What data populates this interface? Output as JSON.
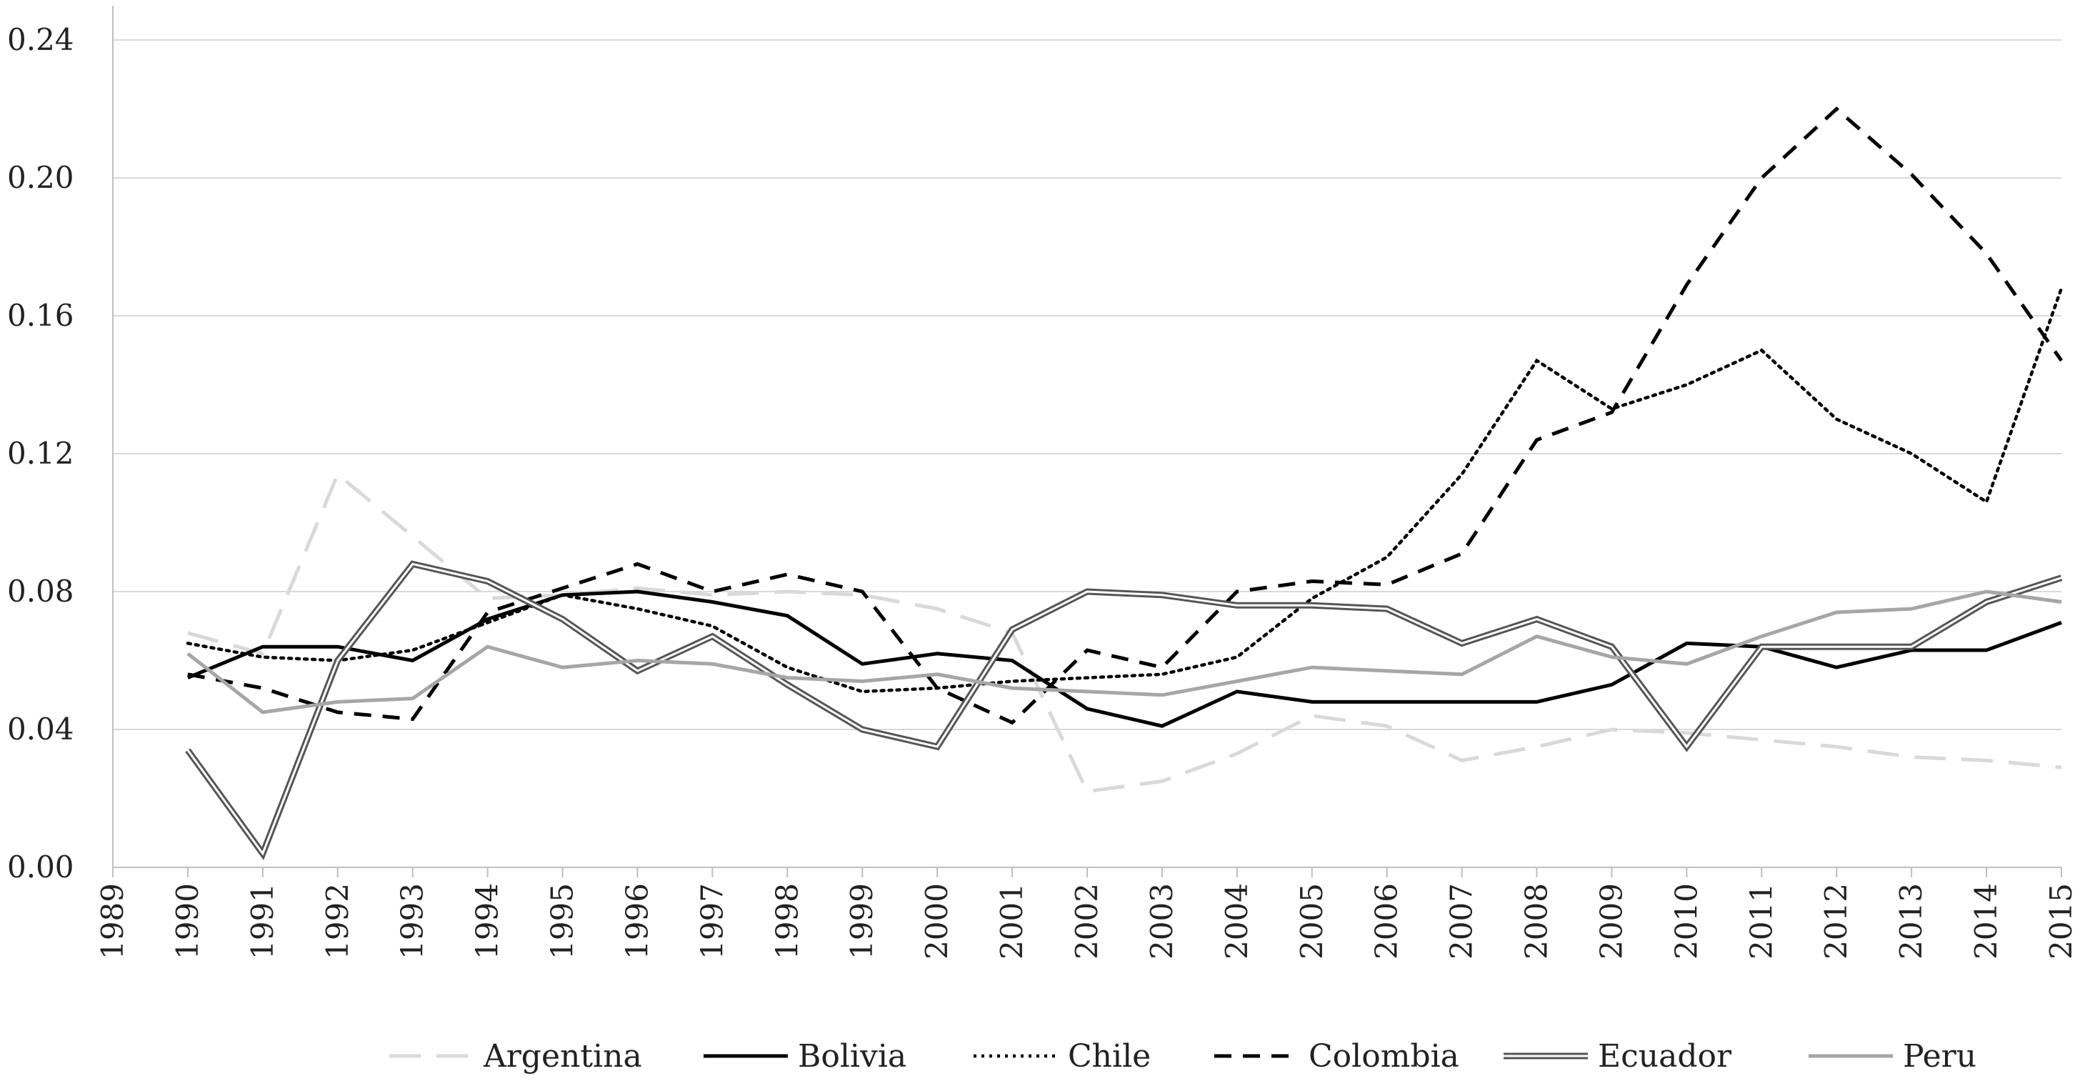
{
  "chart_data": {
    "type": "line",
    "title": "",
    "xlabel": "",
    "ylabel": "",
    "x": [
      1989,
      1990,
      1991,
      1992,
      1993,
      1994,
      1995,
      1996,
      1997,
      1998,
      1999,
      2000,
      2001,
      2002,
      2003,
      2004,
      2005,
      2006,
      2007,
      2008,
      2009,
      2010,
      2011,
      2012,
      2013,
      2014,
      2015
    ],
    "x_tick_labels": [
      "1989",
      "1990",
      "1991",
      "1992",
      "1993",
      "1994",
      "1995",
      "1996",
      "1997",
      "1998",
      "1999",
      "2000",
      "2001",
      "2002",
      "2003",
      "2004",
      "2005",
      "2006",
      "2007",
      "2008",
      "2009",
      "2010",
      "2011",
      "2012",
      "2013",
      "2014",
      "2015"
    ],
    "ylim": [
      0,
      0.24
    ],
    "y_ticks": [
      0,
      0.04,
      0.08,
      0.12,
      0.16,
      0.2,
      0.24
    ],
    "y_tick_labels": [
      "0.00",
      "0.04",
      "0.08",
      "0.12",
      "0.16",
      "0.20",
      "0.24"
    ],
    "grid": "horizontal",
    "legend_position": "bottom",
    "series": [
      {
        "name": "Argentina",
        "style": "longdash",
        "color": "#d9d9d9",
        "x": [
          1990,
          1991,
          1992,
          1993,
          1994,
          1995,
          1996,
          1997,
          1998,
          1999,
          2000,
          2001,
          2002,
          2003,
          2004,
          2005,
          2006,
          2007,
          2008,
          2009,
          2010,
          2011,
          2012,
          2013,
          2014,
          2015
        ],
        "values": [
          0.068,
          0.062,
          0.114,
          0.096,
          0.078,
          0.079,
          0.081,
          0.079,
          0.08,
          0.079,
          0.075,
          0.068,
          0.022,
          0.025,
          0.033,
          0.044,
          0.041,
          0.031,
          0.035,
          0.04,
          0.039,
          0.037,
          0.035,
          0.032,
          0.031,
          0.029
        ]
      },
      {
        "name": "Bolivia",
        "style": "solid",
        "color": "#000000",
        "x": [
          1990,
          1991,
          1992,
          1993,
          1994,
          1995,
          1996,
          1997,
          1998,
          1999,
          2000,
          2001,
          2002,
          2003,
          2004,
          2005,
          2006,
          2007,
          2008,
          2009,
          2010,
          2011,
          2012,
          2013,
          2014,
          2015
        ],
        "values": [
          0.055,
          0.064,
          0.064,
          0.06,
          0.072,
          0.079,
          0.08,
          0.077,
          0.073,
          0.059,
          0.062,
          0.06,
          0.046,
          0.041,
          0.051,
          0.048,
          0.048,
          0.048,
          0.048,
          0.053,
          0.065,
          0.064,
          0.058,
          0.063,
          0.063,
          0.071
        ]
      },
      {
        "name": "Chile",
        "style": "dotted",
        "color": "#000000",
        "x": [
          1990,
          1991,
          1992,
          1993,
          1994,
          1995,
          1996,
          1997,
          1998,
          1999,
          2000,
          2001,
          2002,
          2003,
          2004,
          2005,
          2006,
          2007,
          2008,
          2009,
          2010,
          2011,
          2012,
          2013,
          2014,
          2015
        ],
        "values": [
          0.065,
          0.061,
          0.06,
          0.063,
          0.071,
          0.079,
          0.075,
          0.07,
          0.058,
          0.051,
          0.052,
          0.054,
          0.055,
          0.056,
          0.061,
          0.078,
          0.09,
          0.114,
          0.147,
          0.133,
          0.14,
          0.15,
          0.13,
          0.12,
          0.106,
          0.168
        ]
      },
      {
        "name": "Colombia",
        "style": "dash",
        "color": "#000000",
        "x": [
          1990,
          1991,
          1992,
          1993,
          1994,
          1995,
          1996,
          1997,
          1998,
          1999,
          2000,
          2001,
          2002,
          2003,
          2004,
          2005,
          2006,
          2007,
          2008,
          2009,
          2010,
          2011,
          2012,
          2013,
          2014,
          2015
        ],
        "values": [
          0.056,
          0.052,
          0.045,
          0.043,
          0.074,
          0.081,
          0.088,
          0.08,
          0.085,
          0.08,
          0.052,
          0.042,
          0.063,
          0.058,
          0.08,
          0.083,
          0.082,
          0.091,
          0.124,
          0.132,
          0.169,
          0.2,
          0.22,
          0.201,
          0.178,
          0.147
        ]
      },
      {
        "name": "Ecuador",
        "style": "double",
        "color": "#555555",
        "x": [
          1990,
          1991,
          1992,
          1993,
          1994,
          1995,
          1996,
          1997,
          1998,
          1999,
          2000,
          2001,
          2002,
          2003,
          2004,
          2005,
          2006,
          2007,
          2008,
          2009,
          2010,
          2011,
          2012,
          2013,
          2014,
          2015
        ],
        "values": [
          0.034,
          0.004,
          0.06,
          0.088,
          0.083,
          0.072,
          0.057,
          0.067,
          0.053,
          0.04,
          0.035,
          0.069,
          0.08,
          0.079,
          0.076,
          0.076,
          0.075,
          0.065,
          0.072,
          0.064,
          0.035,
          0.064,
          0.064,
          0.064,
          0.077,
          0.084
        ]
      },
      {
        "name": "Peru",
        "style": "solid",
        "color": "#a6a6a6",
        "x": [
          1990,
          1991,
          1992,
          1993,
          1994,
          1995,
          1996,
          1997,
          1998,
          1999,
          2000,
          2001,
          2002,
          2003,
          2004,
          2005,
          2006,
          2007,
          2008,
          2009,
          2010,
          2011,
          2012,
          2013,
          2014,
          2015
        ],
        "values": [
          0.062,
          0.045,
          0.048,
          0.049,
          0.064,
          0.058,
          0.06,
          0.059,
          0.055,
          0.054,
          0.056,
          0.052,
          0.051,
          0.05,
          0.054,
          0.058,
          0.057,
          0.056,
          0.067,
          0.061,
          0.059,
          0.067,
          0.074,
          0.075,
          0.08,
          0.077
        ]
      }
    ]
  }
}
